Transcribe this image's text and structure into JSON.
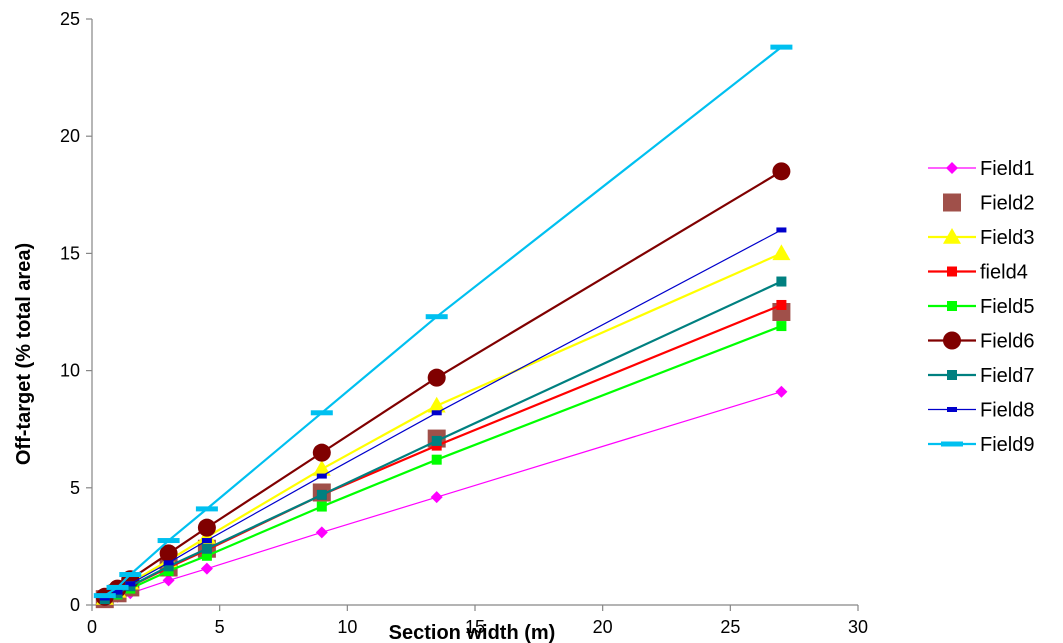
{
  "chart_data": {
    "type": "line",
    "xlabel": "Section width (m)",
    "ylabel": "Off-target (% total area)",
    "xlim": [
      0,
      30
    ],
    "ylim": [
      0,
      25
    ],
    "xticks": [
      0,
      5,
      10,
      15,
      20,
      25,
      30
    ],
    "yticks": [
      0,
      5,
      10,
      15,
      20,
      25
    ],
    "grid": false,
    "legend": "right",
    "x": [
      0.5,
      1,
      1.5,
      3,
      4.5,
      9,
      13.5,
      27
    ],
    "series": [
      {
        "name": "Field1",
        "color": "#ff00ff",
        "marker": "diamond",
        "line": true,
        "values": [
          0.2,
          0.35,
          0.5,
          1.05,
          1.55,
          3.1,
          4.6,
          9.1
        ]
      },
      {
        "name": "Field2",
        "color": "#a0504a",
        "marker": "square-large",
        "line": false,
        "values": [
          0.25,
          0.5,
          0.75,
          1.6,
          2.4,
          4.8,
          7.1,
          12.5
        ]
      },
      {
        "name": "Field3",
        "color": "#ffff00",
        "marker": "triangle",
        "line": true,
        "values": [
          0.3,
          0.6,
          0.95,
          1.9,
          2.9,
          5.8,
          8.5,
          15.0
        ]
      },
      {
        "name": "field4",
        "color": "#ff0000",
        "marker": "square",
        "line": true,
        "values": [
          0.25,
          0.5,
          0.8,
          1.6,
          2.35,
          4.7,
          6.8,
          12.8
        ]
      },
      {
        "name": "Field5",
        "color": "#00ff00",
        "marker": "square",
        "line": true,
        "values": [
          0.25,
          0.45,
          0.7,
          1.45,
          2.1,
          4.2,
          6.2,
          11.9
        ]
      },
      {
        "name": "Field6",
        "color": "#800000",
        "marker": "circle",
        "line": true,
        "values": [
          0.35,
          0.7,
          1.1,
          2.2,
          3.3,
          6.5,
          9.7,
          18.5
        ]
      },
      {
        "name": "Field7",
        "color": "#008080",
        "marker": "square",
        "line": true,
        "values": [
          0.25,
          0.5,
          0.8,
          1.65,
          2.4,
          4.7,
          7.0,
          13.8
        ]
      },
      {
        "name": "Field8",
        "color": "#0000cc",
        "marker": "dash-small",
        "line": true,
        "values": [
          0.3,
          0.55,
          0.9,
          1.8,
          2.75,
          5.5,
          8.2,
          16.0
        ]
      },
      {
        "name": "Field9",
        "color": "#00c0f0",
        "marker": "dash",
        "line": true,
        "values": [
          0.4,
          0.75,
          1.3,
          2.75,
          4.1,
          8.2,
          12.3,
          23.8
        ]
      }
    ]
  }
}
